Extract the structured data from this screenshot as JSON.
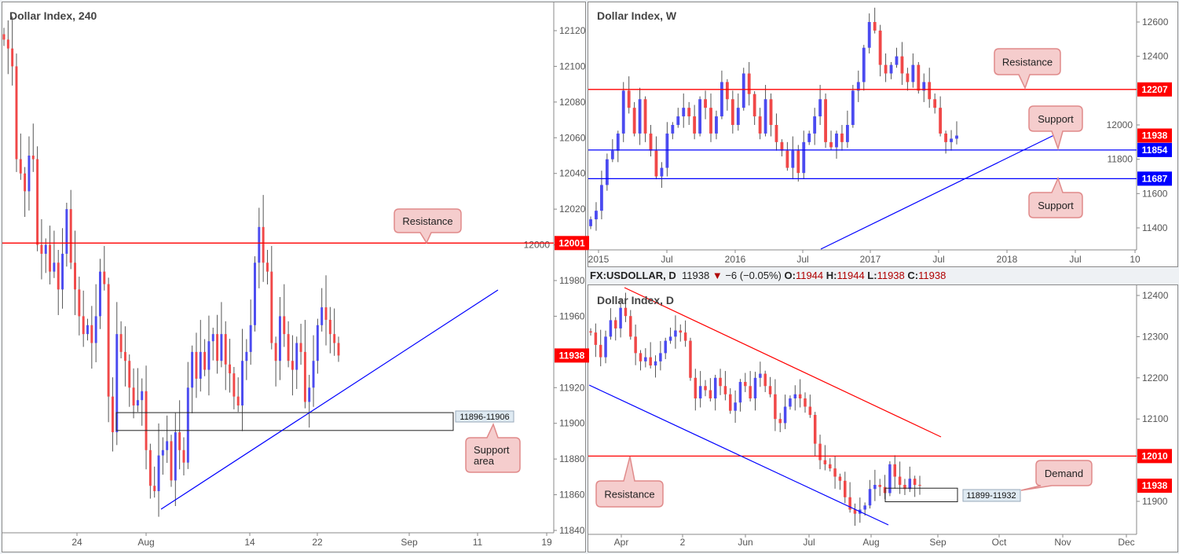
{
  "colors": {
    "up": "#4b4bf0",
    "down": "#f04848",
    "resistance": "#ff0000",
    "support": "#0000ff",
    "callout_fill": "#f5cdcd",
    "callout_border": "#e08a8a",
    "label_fill": "#dfeaf2"
  },
  "header": {
    "symbol": "FX:USDOLLAR, D",
    "last": "11938",
    "arrow": "▼",
    "change": "−6 (−0.05%)",
    "o_label": "O:",
    "o": "11944",
    "h_label": "H:",
    "h": "11944",
    "l_label": "L:",
    "l": "11938",
    "c_label": "C:",
    "c": "11938"
  },
  "chart_data": [
    {
      "id": "h4",
      "type": "candlestick",
      "title": "Dollar Index, 240",
      "ylim": [
        11836,
        12135
      ],
      "yticks": [
        "12120",
        "12100",
        "12080",
        "12060",
        "12040",
        "12020",
        "12000",
        "11980",
        "11960",
        "11920",
        "11900",
        "11880",
        "11860",
        "11840"
      ],
      "xticks": [
        "24",
        "Aug",
        "14",
        "22",
        "Sep",
        "11",
        "19"
      ],
      "closes": [
        12115,
        12110,
        12100,
        12048,
        12040,
        12030,
        12050,
        12048,
        12000,
        11995,
        12000,
        11985,
        11990,
        11975,
        11995,
        12020,
        11990,
        11975,
        11960,
        11950,
        11955,
        11945,
        11960,
        11985,
        11978,
        11915,
        11895,
        11950,
        11940,
        11935,
        11920,
        11910,
        11913,
        11918,
        11885,
        11865,
        11862,
        11882,
        11885,
        11890,
        11868,
        11895,
        11885,
        11878,
        11920,
        11940,
        11925,
        11940,
        11930,
        11946,
        11950,
        11935,
        11950,
        11933,
        11928,
        11915,
        11910,
        11935,
        11940,
        11955,
        11990,
        12010,
        11990,
        11985,
        11945,
        11935,
        11960,
        11950,
        11935,
        11930,
        11945,
        11940,
        11912,
        11920,
        11935,
        11955,
        11965,
        11958,
        11950,
        11945,
        11938
      ],
      "levels": [
        {
          "value": 12001,
          "tag": "12001",
          "kind": "resistance"
        },
        {
          "value": 11938,
          "tag": "11938",
          "kind": "last"
        }
      ],
      "zone": {
        "low": 11896,
        "high": 11906,
        "label": "11896-11906"
      },
      "callouts": [
        {
          "text": "Resistance"
        },
        {
          "text": "Support area"
        }
      ],
      "trendline": {
        "kind": "support"
      }
    },
    {
      "id": "w",
      "type": "candlestick",
      "title": "Dollar Index, W",
      "ylim": [
        11270,
        12660
      ],
      "yticks": [
        "12600",
        "12400",
        "12000",
        "11800",
        "11600",
        "11400"
      ],
      "xticks": [
        "2015",
        "Jul",
        "2016",
        "Jul",
        "2017",
        "Jul",
        "2018",
        "Jul",
        "10"
      ],
      "closes": [
        11450,
        11500,
        11650,
        11800,
        11850,
        11950,
        12200,
        12100,
        11950,
        12150,
        11950,
        11850,
        11700,
        11750,
        11950,
        12000,
        12050,
        12100,
        12050,
        11950,
        12150,
        12100,
        11950,
        12050,
        12250,
        12150,
        12000,
        12100,
        12300,
        12180,
        12050,
        11950,
        12150,
        12000,
        11900,
        11850,
        11750,
        11850,
        11720,
        11900,
        11950,
        12050,
        12150,
        11900,
        11870,
        11950,
        11900,
        12000,
        12200,
        12250,
        12450,
        12600,
        12550,
        12350,
        12300,
        12350,
        12400,
        12300,
        12250,
        12350,
        12200,
        12250,
        12150,
        12100,
        11950,
        11900,
        11920,
        11938
      ],
      "levels": [
        {
          "value": 12207,
          "tag": "12207",
          "kind": "resistance"
        },
        {
          "value": 11938,
          "tag": "11938",
          "kind": "last"
        },
        {
          "value": 11854,
          "tag": "11854",
          "kind": "support"
        },
        {
          "value": 11687,
          "tag": "11687",
          "kind": "support"
        }
      ],
      "callouts": [
        {
          "text": "Resistance"
        },
        {
          "text": "Support"
        },
        {
          "text": "Support"
        }
      ],
      "trendline": {
        "kind": "support"
      }
    },
    {
      "id": "d",
      "type": "candlestick",
      "title": "Dollar Index, D",
      "ylim": [
        11815,
        12425
      ],
      "yticks": [
        "12400",
        "12300",
        "12200",
        "12100",
        "11900"
      ],
      "xticks": [
        "Apr",
        "2",
        "Jun",
        "Jul",
        "Aug",
        "Sep",
        "Oct",
        "Nov",
        "Dec"
      ],
      "closes": [
        12310,
        12280,
        12250,
        12300,
        12340,
        12320,
        12370,
        12350,
        12300,
        12260,
        12240,
        12250,
        12230,
        12240,
        12260,
        12290,
        12300,
        12315,
        12310,
        12290,
        12200,
        12150,
        12180,
        12170,
        12150,
        12200,
        12180,
        12160,
        12120,
        12140,
        12190,
        12180,
        12150,
        12200,
        12210,
        12180,
        12160,
        12100,
        12090,
        12130,
        12150,
        12160,
        12150,
        12130,
        12110,
        12040,
        12000,
        11990,
        11980,
        11960,
        11950,
        11910,
        11880,
        11870,
        11880,
        11890,
        11930,
        11940,
        11935,
        11920,
        11990,
        11960,
        11940,
        11930,
        11955,
        11940,
        11938
      ],
      "levels": [
        {
          "value": 12010,
          "tag": "12010",
          "kind": "resistance"
        },
        {
          "value": 11938,
          "tag": "11938",
          "kind": "last"
        }
      ],
      "zone": {
        "low": 11899,
        "high": 11932,
        "label": "11899-11932"
      },
      "callouts": [
        {
          "text": "Demand"
        },
        {
          "text": "Resistance"
        }
      ],
      "channel": {
        "upper": "resistance",
        "lower": "support"
      }
    }
  ]
}
